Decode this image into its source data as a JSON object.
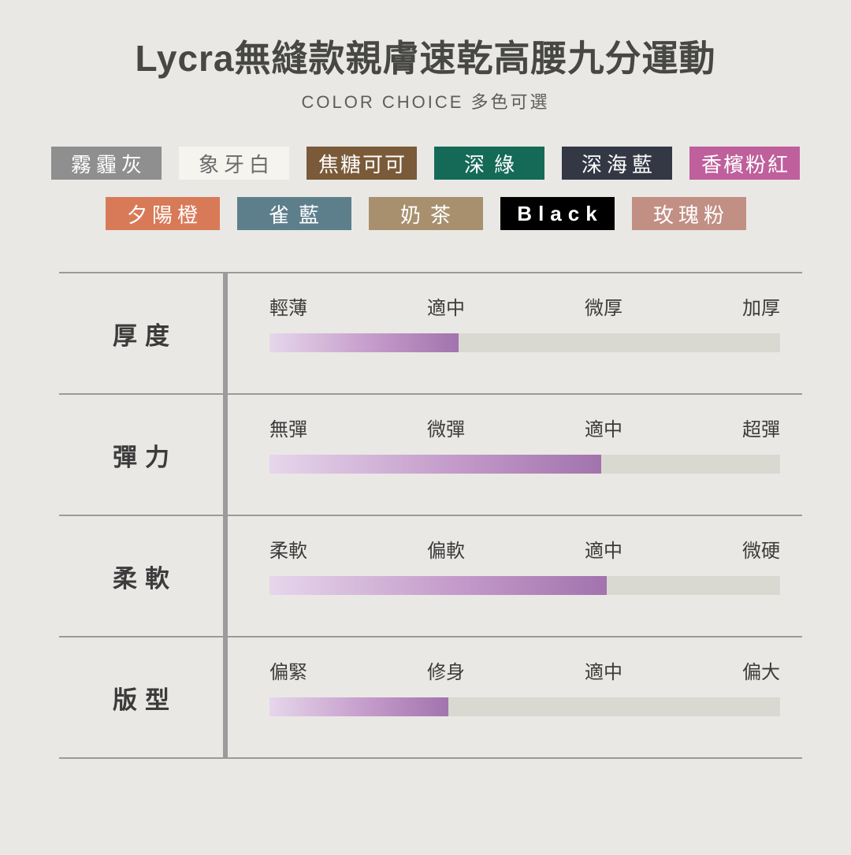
{
  "header": {
    "title": "Lycra無縫款親膚速乾高腰九分運動",
    "subtitle": "COLOR CHOICE 多色可選"
  },
  "colors": {
    "row1": [
      {
        "label": "霧霾灰",
        "bg": "#8f8f8f",
        "text": "#ffffff"
      },
      {
        "label": "象牙白",
        "bg": "#f5f4ef",
        "text": "#6b6b6b"
      },
      {
        "label": "焦糖可可",
        "bg": "#7a5a38",
        "text": "#ffffff"
      },
      {
        "label": "深綠",
        "bg": "#156a57",
        "text": "#ffffff"
      },
      {
        "label": "深海藍",
        "bg": "#343845",
        "text": "#ffffff"
      },
      {
        "label": "香檳粉紅",
        "bg": "#bf5f9c",
        "text": "#ffffff"
      }
    ],
    "row2": [
      {
        "label": "夕陽橙",
        "bg": "#d87a58",
        "text": "#ffffff"
      },
      {
        "label": "雀藍",
        "bg": "#5d7f8c",
        "text": "#ffffff"
      },
      {
        "label": "奶茶",
        "bg": "#a8906f",
        "text": "#ffffff"
      },
      {
        "label": "Black",
        "bg": "#000000",
        "text": "#ffffff"
      },
      {
        "label": "玫瑰粉",
        "bg": "#c28f85",
        "text": "#ffffff"
      }
    ]
  },
  "chart_data": {
    "type": "bar",
    "title": "Lycra無縫款親膚速乾高腰九分運動",
    "subtitle": "COLOR CHOICE 多色可選",
    "rows": [
      {
        "category": "厚度",
        "scale": [
          "輕薄",
          "適中",
          "微厚",
          "加厚"
        ],
        "fill_percent": 37
      },
      {
        "category": "彈力",
        "scale": [
          "無彈",
          "微彈",
          "適中",
          "超彈"
        ],
        "fill_percent": 65
      },
      {
        "category": "柔軟",
        "scale": [
          "柔軟",
          "偏軟",
          "適中",
          "微硬"
        ],
        "fill_percent": 66
      },
      {
        "category": "版型",
        "scale": [
          "偏緊",
          "修身",
          "適中",
          "偏大"
        ],
        "fill_percent": 35
      }
    ],
    "xlim_percent": [
      0,
      100
    ],
    "bar_track_color": "#d9d8d1",
    "bar_gradient_css": "linear-gradient(90deg, #e6d6eb 0%, #c49bca 55%, #a273ae 100%)"
  }
}
